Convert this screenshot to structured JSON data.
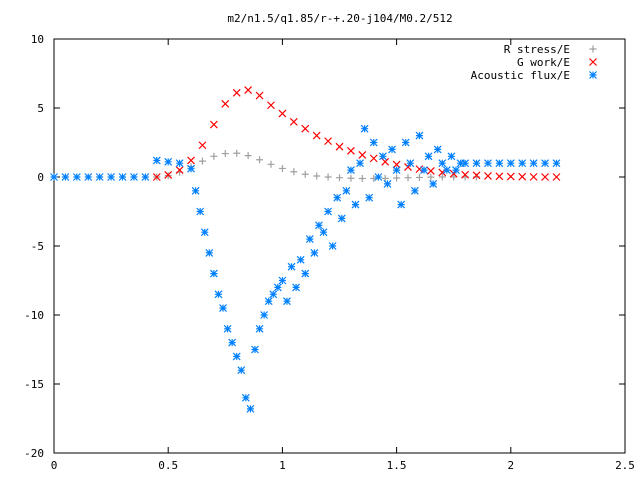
{
  "chart_data": {
    "type": "scatter",
    "title": "m2/n1.5/q1.85/r-+.20-j104/M0.2/512",
    "xlabel": "",
    "ylabel": "",
    "xlim": [
      0,
      2.5
    ],
    "ylim": [
      -20,
      10
    ],
    "x_ticks": [
      0,
      0.5,
      1,
      1.5,
      2,
      2.5
    ],
    "x_tick_labels": [
      "0",
      "0.5",
      "1",
      "1.5",
      "2",
      "2.5"
    ],
    "y_ticks": [
      -20,
      -15,
      -10,
      -5,
      0,
      5,
      10
    ],
    "y_tick_labels": [
      "-20",
      "-15",
      "-10",
      "-5",
      "0",
      "5",
      "10"
    ],
    "grid": false,
    "legend_position": "top-right",
    "series": [
      {
        "name": "R stress/E",
        "marker": "plus",
        "color": "#a0a0a0",
        "x": [
          0.45,
          0.5,
          0.55,
          0.6,
          0.65,
          0.7,
          0.75,
          0.8,
          0.85,
          0.9,
          0.95,
          1.0,
          1.05,
          1.1,
          1.15,
          1.2,
          1.25,
          1.3,
          1.35,
          1.4,
          1.45,
          1.5,
          1.55,
          1.6,
          1.65,
          1.7,
          1.75,
          1.8,
          1.85
        ],
        "y": [
          0,
          0.1,
          0.35,
          0.75,
          1.15,
          1.5,
          1.7,
          1.72,
          1.55,
          1.25,
          0.92,
          0.62,
          0.38,
          0.2,
          0.07,
          0,
          -0.05,
          -0.09,
          -0.11,
          -0.11,
          -0.1,
          -0.07,
          -0.05,
          -0.03,
          -0.01,
          0,
          0,
          0,
          0
        ]
      },
      {
        "name": "G work/E",
        "marker": "cross",
        "color": "#ff0000",
        "x": [
          0.45,
          0.5,
          0.55,
          0.6,
          0.65,
          0.7,
          0.75,
          0.8,
          0.85,
          0.9,
          0.95,
          1.0,
          1.05,
          1.1,
          1.15,
          1.2,
          1.25,
          1.3,
          1.35,
          1.4,
          1.45,
          1.5,
          1.55,
          1.6,
          1.65,
          1.7,
          1.75,
          1.8,
          1.85,
          1.9,
          1.95,
          2.0,
          2.05,
          2.1,
          2.15,
          2.2
        ],
        "y": [
          0,
          0.15,
          0.5,
          1.2,
          2.3,
          3.8,
          5.3,
          6.1,
          6.3,
          5.9,
          5.2,
          4.6,
          4.0,
          3.5,
          3.0,
          2.6,
          2.2,
          1.9,
          1.6,
          1.35,
          1.1,
          0.9,
          0.72,
          0.57,
          0.44,
          0.33,
          0.24,
          0.17,
          0.12,
          0.08,
          0.05,
          0.03,
          0.02,
          0.01,
          0,
          0
        ]
      },
      {
        "name": "Acoustic flux/E",
        "marker": "star",
        "color": "#0080ff",
        "x": [
          0.45,
          0.5,
          0.55,
          0.6,
          0.62,
          0.64,
          0.66,
          0.68,
          0.7,
          0.72,
          0.74,
          0.76,
          0.78,
          0.8,
          0.82,
          0.84,
          0.86,
          0.88,
          0.9,
          0.92,
          0.94,
          0.96,
          0.98,
          1.0,
          1.02,
          1.04,
          1.06,
          1.08,
          1.1,
          1.12,
          1.14,
          1.16,
          1.18,
          1.2,
          1.22,
          1.24,
          1.26,
          1.28,
          1.3,
          1.32,
          1.34,
          1.36,
          1.38,
          1.4,
          1.42,
          1.44,
          1.46,
          1.48,
          1.5,
          1.52,
          1.54,
          1.56,
          1.58,
          1.6,
          1.62,
          1.64,
          1.66,
          1.68,
          1.7,
          1.72,
          1.74,
          1.76,
          1.78,
          1.8,
          1.85,
          1.9,
          1.95,
          2.0,
          2.05,
          2.1,
          2.15,
          2.2
        ],
        "y": [
          1.2,
          1.1,
          1.0,
          0.6,
          -1.0,
          -2.5,
          -4.0,
          -5.5,
          -7.0,
          -8.5,
          -9.5,
          -11.0,
          -12.0,
          -13.0,
          -14.0,
          -16.0,
          -16.8,
          -12.5,
          -11.0,
          -10.0,
          -9.0,
          -8.5,
          -8.0,
          -7.5,
          -9.0,
          -6.5,
          -8.0,
          -6.0,
          -7.0,
          -4.5,
          -5.5,
          -3.5,
          -4.0,
          -2.5,
          -5.0,
          -1.5,
          -3.0,
          -1.0,
          0.5,
          -2.0,
          1.0,
          3.5,
          -1.5,
          2.5,
          0.0,
          1.5,
          -0.5,
          2.0,
          0.5,
          -2.0,
          2.5,
          1.0,
          -1.0,
          3.0,
          0.5,
          1.5,
          -0.5,
          2.0,
          1.0,
          0.5,
          1.5,
          0.5,
          1.0,
          1.0,
          1.0,
          1.0,
          1.0,
          1.0,
          1.0,
          1.0,
          1.0,
          1.0
        ]
      }
    ],
    "extra_points": [
      {
        "series": 2,
        "x": [
          0.0,
          0.05,
          0.1,
          0.15,
          0.2,
          0.25,
          0.3,
          0.35,
          0.4
        ],
        "y": [
          0,
          0,
          0,
          0,
          0,
          0,
          0,
          0,
          0
        ]
      }
    ]
  }
}
